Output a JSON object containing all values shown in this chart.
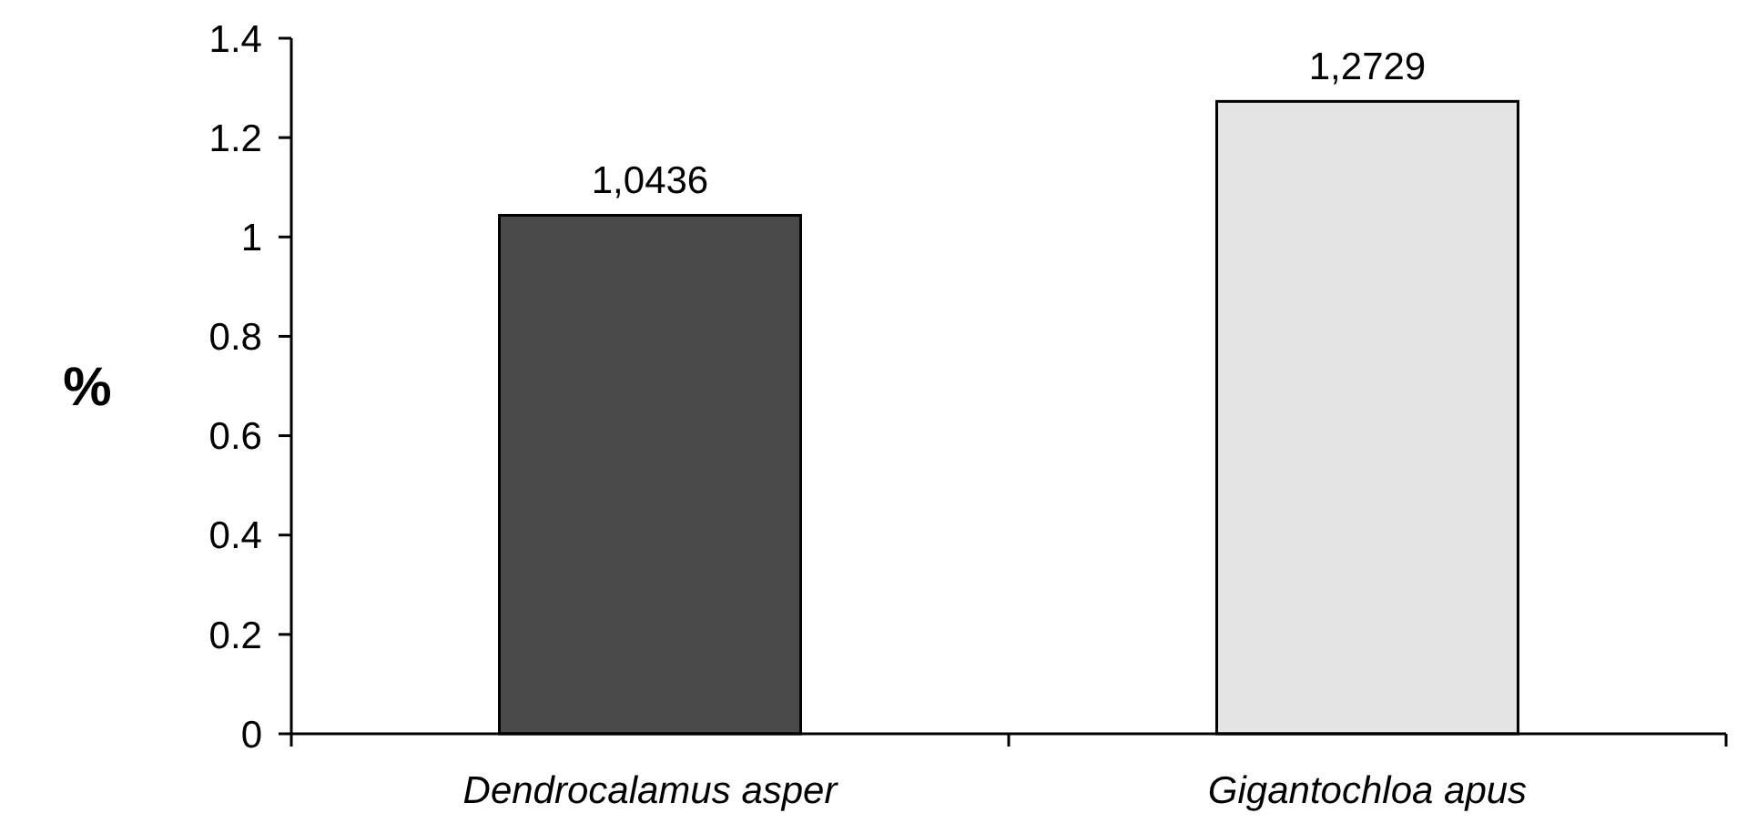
{
  "chart_data": {
    "type": "bar",
    "ylabel": "%",
    "categories": [
      "Dendrocalamus asper",
      "Gigantochloa apus"
    ],
    "values": [
      1.0436,
      1.2729
    ],
    "value_labels": [
      "1,0436",
      "1,2729"
    ],
    "colors": [
      "#4a4a4a",
      "#e4e4e4"
    ],
    "ylim": [
      0,
      1.4
    ],
    "yticks": [
      0,
      0.2,
      0.4,
      0.6,
      0.8,
      1,
      1.2,
      1.4
    ],
    "grid": false
  }
}
